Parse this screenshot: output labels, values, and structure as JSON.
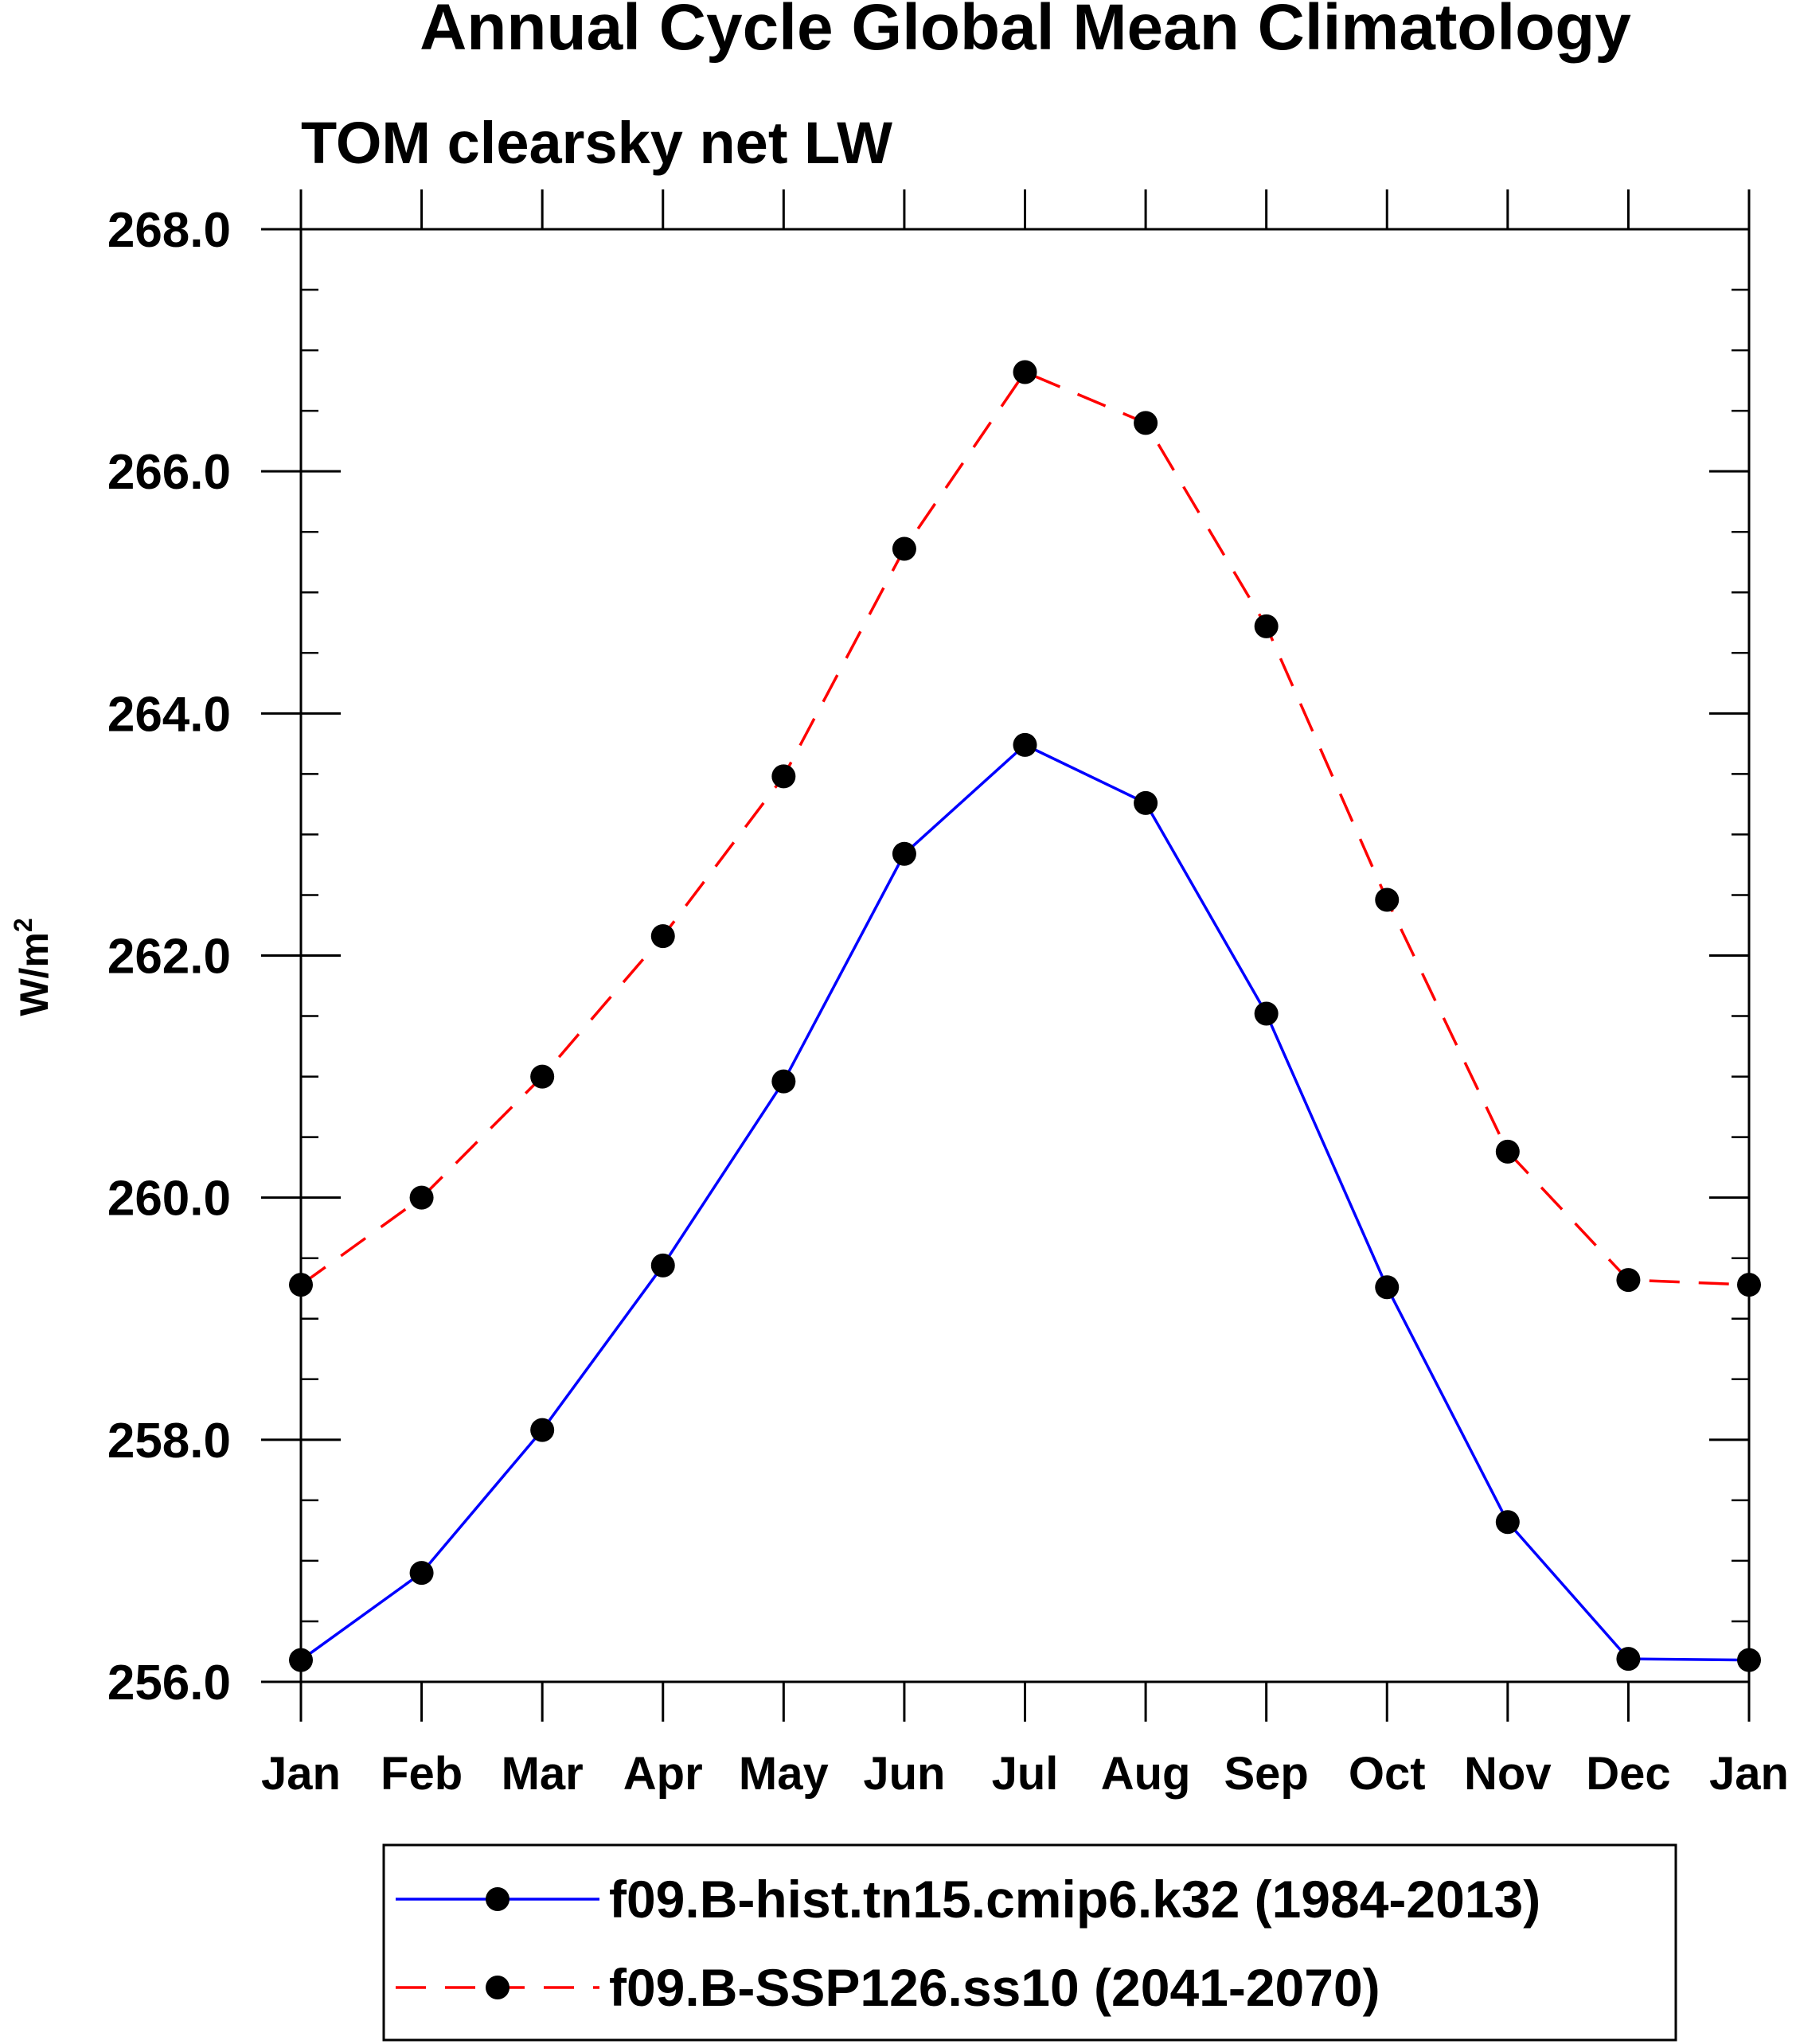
{
  "chart_data": {
    "type": "line",
    "title": "Annual Cycle Global Mean Climatology",
    "subtitle": "TOM clearsky net LW",
    "xlabel": "",
    "ylabel": "W/m",
    "ylabel_superscript": "2",
    "categories": [
      "Jan",
      "Feb",
      "Mar",
      "Apr",
      "May",
      "Jun",
      "Jul",
      "Aug",
      "Sep",
      "Oct",
      "Nov",
      "Dec",
      "Jan"
    ],
    "ylim": [
      256.0,
      268.0
    ],
    "yticks": [
      "256.0",
      "258.0",
      "260.0",
      "262.0",
      "264.0",
      "266.0",
      "268.0"
    ],
    "y_minor_step": 0.5,
    "grid": false,
    "legend_position": "bottom",
    "series": [
      {
        "name": "f09.B-hist.tn15.cmip6.k32 (1984-2013)",
        "color": "#0000ff",
        "line_style": "solid",
        "marker": "filled-circle",
        "values": [
          256.18,
          256.9,
          258.08,
          259.44,
          260.96,
          262.84,
          263.74,
          263.26,
          261.52,
          259.26,
          257.32,
          256.19,
          256.18
        ]
      },
      {
        "name": "f09.B-SSP126.ss10 (2041-2070)",
        "color": "#ff0000",
        "line_style": "dashed",
        "marker": "filled-circle",
        "values": [
          259.28,
          260.0,
          261.0,
          262.16,
          263.48,
          265.36,
          266.82,
          266.4,
          264.72,
          262.46,
          260.38,
          259.32,
          259.28
        ]
      }
    ]
  }
}
